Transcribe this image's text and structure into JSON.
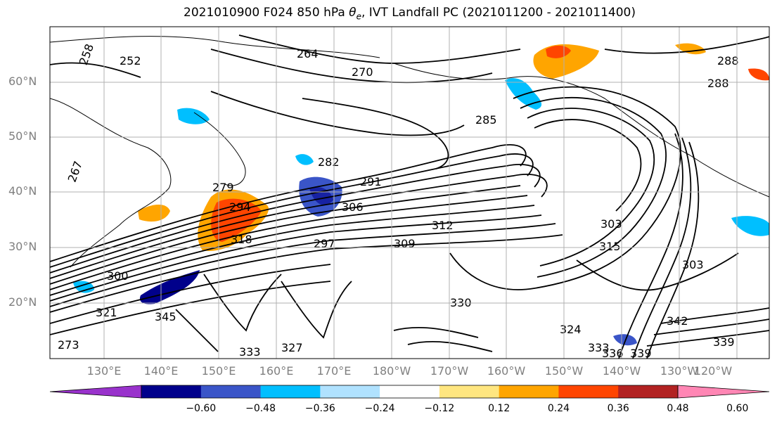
{
  "title": {
    "prefix": "2021010900 F024 850 hPa ",
    "theta": "θ",
    "theta_sub": "e",
    "suffix": ", IVT Landfall PC (2021011200 - 2021011400)"
  },
  "map": {
    "lat_labels": [
      "60°N",
      "50°N",
      "40°N",
      "30°N",
      "20°N"
    ],
    "lon_labels": [
      "130°E",
      "140°E",
      "150°E",
      "160°E",
      "170°E",
      "180°W",
      "170°W",
      "160°W",
      "150°W",
      "140°W",
      "130°W",
      "120°W"
    ],
    "contour_labels": [
      "252",
      "258",
      "264",
      "270",
      "285",
      "282",
      "291",
      "306",
      "312",
      "294",
      "279",
      "288",
      "300",
      "303",
      "315",
      "318",
      "324",
      "330",
      "333",
      "336",
      "339",
      "342",
      "345",
      "267",
      "273",
      "297",
      "309",
      "321",
      "327"
    ]
  },
  "colorbar": {
    "ticks": [
      "−0.60",
      "−0.48",
      "−0.36",
      "−0.24",
      "−0.12",
      "0.12",
      "0.24",
      "0.36",
      "0.48",
      "0.60"
    ],
    "colors": [
      "#9932cc",
      "#00008b",
      "#3a55c8",
      "#00bfff",
      "#b0e2ff",
      "#ffffff",
      "#ffe680",
      "#ffa500",
      "#ff4500",
      "#b22222",
      "#ff86b4"
    ]
  }
}
